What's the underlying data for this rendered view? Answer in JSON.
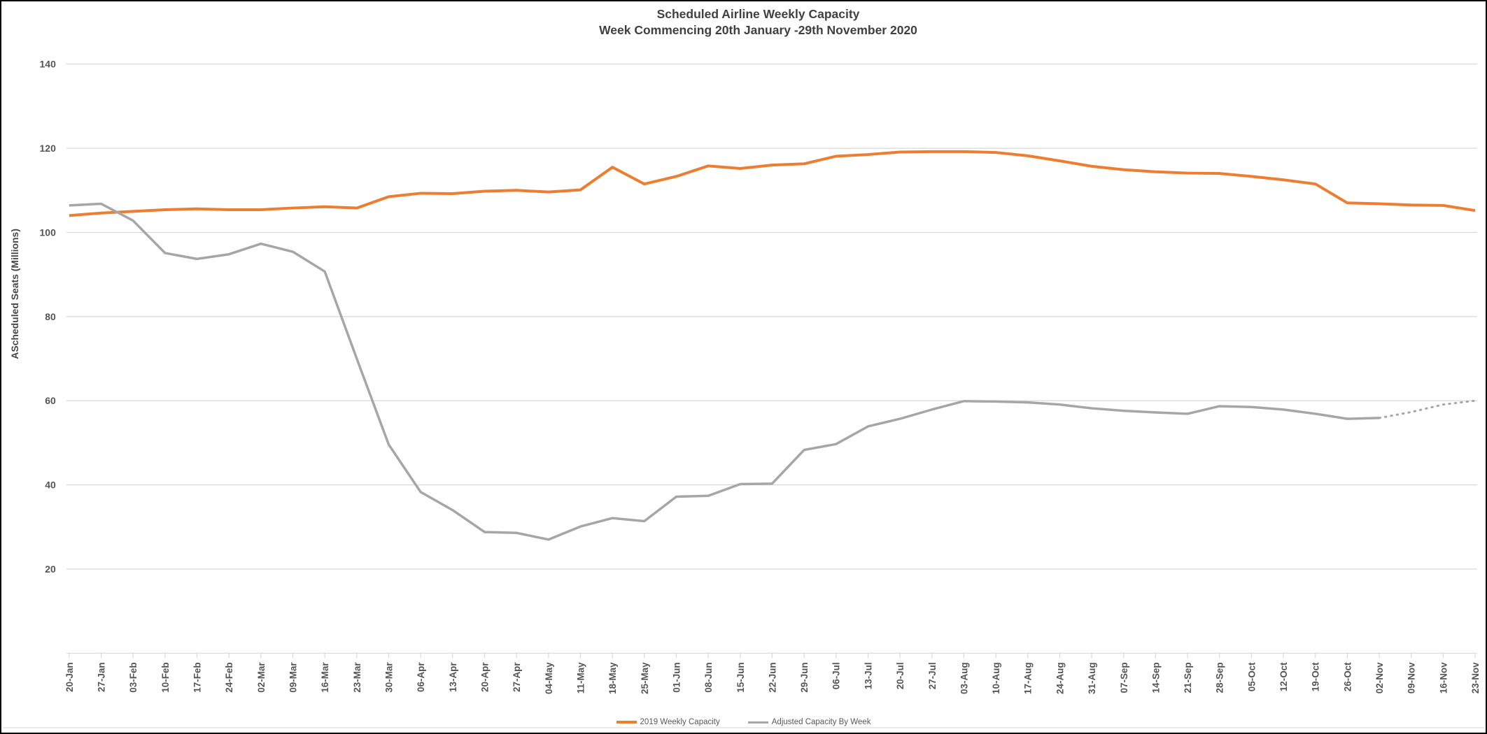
{
  "title": {
    "line1": "Scheduled Airline Weekly Capacity",
    "line2": "Week Commencing 20th January -29th November 2020"
  },
  "y_axis": {
    "label": "AScheduled Seats (Millions)",
    "ticks": [
      20,
      40,
      60,
      80,
      100,
      120,
      140
    ]
  },
  "legend": [
    {
      "label": "2019 Weekly Capacity",
      "color": "#ED7D31"
    },
    {
      "label": "Adjusted Capacity By Week",
      "color": "#A6A6A6"
    }
  ],
  "colors": {
    "gridline": "#D9D9D9",
    "axis": "#D9D9D9",
    "title_text": "#404040",
    "tick_text": "#555555"
  },
  "chart_data": {
    "type": "line",
    "title": "Scheduled Airline Weekly Capacity",
    "subtitle": "Week Commencing 20th January -29th November 2020",
    "xlabel": "",
    "ylabel": "AScheduled Seats (Millions)",
    "ylim": [
      0,
      140
    ],
    "yticks": [
      20,
      40,
      60,
      80,
      100,
      120,
      140
    ],
    "grid": "horizontal",
    "legend_position": "bottom-center",
    "categories": [
      "20-Jan",
      "27-Jan",
      "03-Feb",
      "10-Feb",
      "17-Feb",
      "24-Feb",
      "02-Mar",
      "09-Mar",
      "16-Mar",
      "23-Mar",
      "30-Mar",
      "06-Apr",
      "13-Apr",
      "20-Apr",
      "27-Apr",
      "04-May",
      "11-May",
      "18-May",
      "25-May",
      "01-Jun",
      "08-Jun",
      "15-Jun",
      "22-Jun",
      "29-Jun",
      "06-Jul",
      "13-Jul",
      "20-Jul",
      "27-Jul",
      "03-Aug",
      "10-Aug",
      "17-Aug",
      "24-Aug",
      "31-Aug",
      "07-Sep",
      "14-Sep",
      "21-Sep",
      "28-Sep",
      "05-Oct",
      "12-Oct",
      "19-Oct",
      "26-Oct",
      "02-Nov",
      "09-Nov",
      "16-Nov",
      "23-Nov"
    ],
    "series": [
      {
        "name": "2019 Weekly Capacity",
        "color": "#ED7D31",
        "style": "solid",
        "stroke_width": 4,
        "dotted_from_index": null,
        "values": [
          104.0,
          104.6,
          105.0,
          105.4,
          105.6,
          105.4,
          105.4,
          105.8,
          106.1,
          105.8,
          108.5,
          109.3,
          109.2,
          109.8,
          110.0,
          109.6,
          110.1,
          115.5,
          111.5,
          113.3,
          115.8,
          115.2,
          116.0,
          116.3,
          118.1,
          118.5,
          119.1,
          119.2,
          119.2,
          119.0,
          118.2,
          117.0,
          115.7,
          114.9,
          114.4,
          114.1,
          114.0,
          113.3,
          112.5,
          111.5,
          107.0,
          106.8,
          106.5,
          106.4,
          105.2
        ]
      },
      {
        "name": "Adjusted Capacity By Week",
        "color": "#A6A6A6",
        "style": "solid-then-dotted",
        "stroke_width": 3.5,
        "dotted_from_index": 41,
        "values": [
          106.4,
          106.8,
          102.8,
          95.1,
          93.7,
          94.8,
          97.3,
          95.4,
          90.7,
          70.0,
          49.6,
          38.3,
          34.0,
          28.8,
          28.6,
          27.0,
          30.1,
          32.1,
          31.4,
          37.2,
          37.4,
          40.2,
          40.3,
          48.3,
          49.7,
          53.9,
          55.7,
          57.9,
          59.9,
          59.8,
          59.6,
          59.1,
          58.2,
          57.6,
          57.2,
          56.9,
          58.7,
          58.5,
          57.9,
          56.9,
          55.7,
          55.9,
          57.3,
          59.1,
          60.0
        ]
      }
    ]
  }
}
